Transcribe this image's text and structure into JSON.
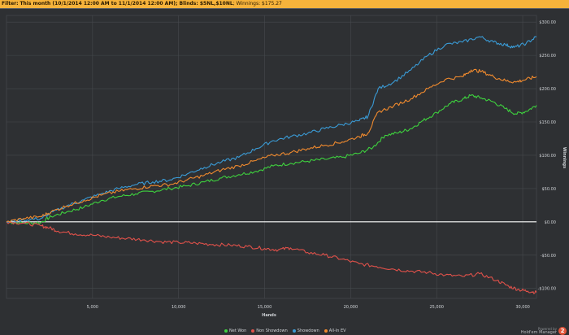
{
  "filter": {
    "prefix": "Filter:",
    "text": "This month (10/1/2014 12:00 AM to 11/1/2014 12:00 AM); Blinds: $5NL,$10NL",
    "winnings": "; Winnings: $175.27"
  },
  "colors": {
    "net_won": "#3ed13e",
    "non_showdown": "#e0514a",
    "showdown": "#3a9bd6",
    "allin_ev": "#f08a2e",
    "zero_line": "#ffffff",
    "grid": "#46494d",
    "background": "#2e3033",
    "filter_bar": "#f6b33b"
  },
  "chart_data": {
    "type": "line",
    "xlabel": "Hands",
    "ylabel": "Winnings",
    "xlim": [
      0,
      30800
    ],
    "ylim": [
      -115,
      310
    ],
    "x_ticks": [
      5000,
      10000,
      15000,
      20000,
      25000,
      30000
    ],
    "x_tick_labels": [
      "5,000",
      "10,000",
      "15,000",
      "20,000",
      "25,000",
      "30,000"
    ],
    "y_ticks": [
      -100,
      -50,
      0,
      50,
      100,
      150,
      200,
      250,
      300
    ],
    "y_tick_labels": [
      "-$100.00",
      "-$50.00",
      "$0.00",
      "$50.00",
      "$100.00",
      "$150.00",
      "$200.00",
      "$250.00",
      "$300.00"
    ],
    "grid": true,
    "legend_position": "bottom",
    "series": [
      {
        "name": "Net Won",
        "color_key": "net_won",
        "points": [
          [
            0,
            0
          ],
          [
            1000,
            -2
          ],
          [
            2000,
            -1
          ],
          [
            2600,
            8
          ],
          [
            3500,
            15
          ],
          [
            4500,
            22
          ],
          [
            5500,
            32
          ],
          [
            6500,
            38
          ],
          [
            7500,
            42
          ],
          [
            8500,
            46
          ],
          [
            9500,
            50
          ],
          [
            10500,
            54
          ],
          [
            11500,
            60
          ],
          [
            12500,
            66
          ],
          [
            13500,
            71
          ],
          [
            14500,
            76
          ],
          [
            15500,
            84
          ],
          [
            16500,
            88
          ],
          [
            17500,
            91
          ],
          [
            18500,
            94
          ],
          [
            19500,
            97
          ],
          [
            20500,
            103
          ],
          [
            21300,
            112
          ],
          [
            22000,
            130
          ],
          [
            22800,
            134
          ],
          [
            23500,
            140
          ],
          [
            24200,
            152
          ],
          [
            25000,
            164
          ],
          [
            25800,
            178
          ],
          [
            26500,
            184
          ],
          [
            27000,
            190
          ],
          [
            27600,
            186
          ],
          [
            28300,
            180
          ],
          [
            29000,
            170
          ],
          [
            29600,
            162
          ],
          [
            30200,
            166
          ],
          [
            30800,
            175
          ]
        ]
      },
      {
        "name": "Non Showdown",
        "color_key": "non_showdown",
        "points": [
          [
            0,
            0
          ],
          [
            1000,
            -2
          ],
          [
            2000,
            -6
          ],
          [
            2500,
            -9
          ],
          [
            3000,
            -14
          ],
          [
            4000,
            -18
          ],
          [
            5000,
            -20
          ],
          [
            6000,
            -23
          ],
          [
            7000,
            -25
          ],
          [
            8000,
            -27
          ],
          [
            9000,
            -30
          ],
          [
            10000,
            -31
          ],
          [
            11000,
            -32
          ],
          [
            12000,
            -34
          ],
          [
            13000,
            -35
          ],
          [
            14000,
            -37
          ],
          [
            15000,
            -40
          ],
          [
            15800,
            -42
          ],
          [
            16500,
            -39
          ],
          [
            17500,
            -46
          ],
          [
            18500,
            -50
          ],
          [
            19500,
            -56
          ],
          [
            20500,
            -63
          ],
          [
            21500,
            -67
          ],
          [
            22500,
            -71
          ],
          [
            23500,
            -74
          ],
          [
            24500,
            -76
          ],
          [
            25500,
            -80
          ],
          [
            26500,
            -82
          ],
          [
            27500,
            -78
          ],
          [
            28500,
            -88
          ],
          [
            29200,
            -97
          ],
          [
            29800,
            -102
          ],
          [
            30300,
            -104
          ],
          [
            30800,
            -106
          ]
        ]
      },
      {
        "name": "Showdown",
        "color_key": "showdown",
        "points": [
          [
            0,
            0
          ],
          [
            1000,
            3
          ],
          [
            2000,
            5
          ],
          [
            2500,
            12
          ],
          [
            3500,
            24
          ],
          [
            4500,
            33
          ],
          [
            5500,
            42
          ],
          [
            6500,
            50
          ],
          [
            7500,
            56
          ],
          [
            8500,
            60
          ],
          [
            9500,
            63
          ],
          [
            10500,
            72
          ],
          [
            11500,
            82
          ],
          [
            12500,
            90
          ],
          [
            13500,
            97
          ],
          [
            14500,
            110
          ],
          [
            15500,
            122
          ],
          [
            16500,
            128
          ],
          [
            17500,
            133
          ],
          [
            18500,
            140
          ],
          [
            19500,
            146
          ],
          [
            20500,
            152
          ],
          [
            21000,
            158
          ],
          [
            21600,
            200
          ],
          [
            22500,
            210
          ],
          [
            23500,
            228
          ],
          [
            24500,
            250
          ],
          [
            25500,
            266
          ],
          [
            26500,
            270
          ],
          [
            27500,
            278
          ],
          [
            28300,
            270
          ],
          [
            29000,
            266
          ],
          [
            29500,
            262
          ],
          [
            30200,
            268
          ],
          [
            30800,
            278
          ]
        ]
      },
      {
        "name": "All-In EV",
        "color_key": "allin_ev",
        "points": [
          [
            0,
            0
          ],
          [
            1000,
            5
          ],
          [
            2000,
            8
          ],
          [
            2600,
            15
          ],
          [
            3500,
            24
          ],
          [
            4500,
            32
          ],
          [
            5500,
            40
          ],
          [
            6500,
            46
          ],
          [
            7500,
            50
          ],
          [
            8500,
            54
          ],
          [
            9500,
            56
          ],
          [
            10500,
            63
          ],
          [
            11500,
            70
          ],
          [
            12500,
            78
          ],
          [
            13500,
            84
          ],
          [
            14500,
            92
          ],
          [
            15500,
            100
          ],
          [
            16500,
            104
          ],
          [
            17500,
            110
          ],
          [
            18500,
            115
          ],
          [
            19500,
            120
          ],
          [
            20500,
            128
          ],
          [
            21000,
            133
          ],
          [
            21600,
            165
          ],
          [
            22500,
            174
          ],
          [
            23500,
            185
          ],
          [
            24500,
            200
          ],
          [
            25500,
            214
          ],
          [
            26500,
            218
          ],
          [
            27000,
            228
          ],
          [
            27600,
            226
          ],
          [
            28300,
            218
          ],
          [
            29000,
            212
          ],
          [
            29600,
            210
          ],
          [
            30200,
            214
          ],
          [
            30800,
            218
          ]
        ]
      }
    ]
  },
  "legend": {
    "items": [
      {
        "label": "Net Won",
        "color_key": "net_won"
      },
      {
        "label": "Non Showdown",
        "color_key": "non_showdown"
      },
      {
        "label": "Showdown",
        "color_key": "showdown"
      },
      {
        "label": "All-In EV",
        "color_key": "allin_ev"
      }
    ]
  },
  "branding": {
    "powered_by": "Powered by",
    "product": "Hold'em Manager",
    "logo_glyph": "2"
  }
}
